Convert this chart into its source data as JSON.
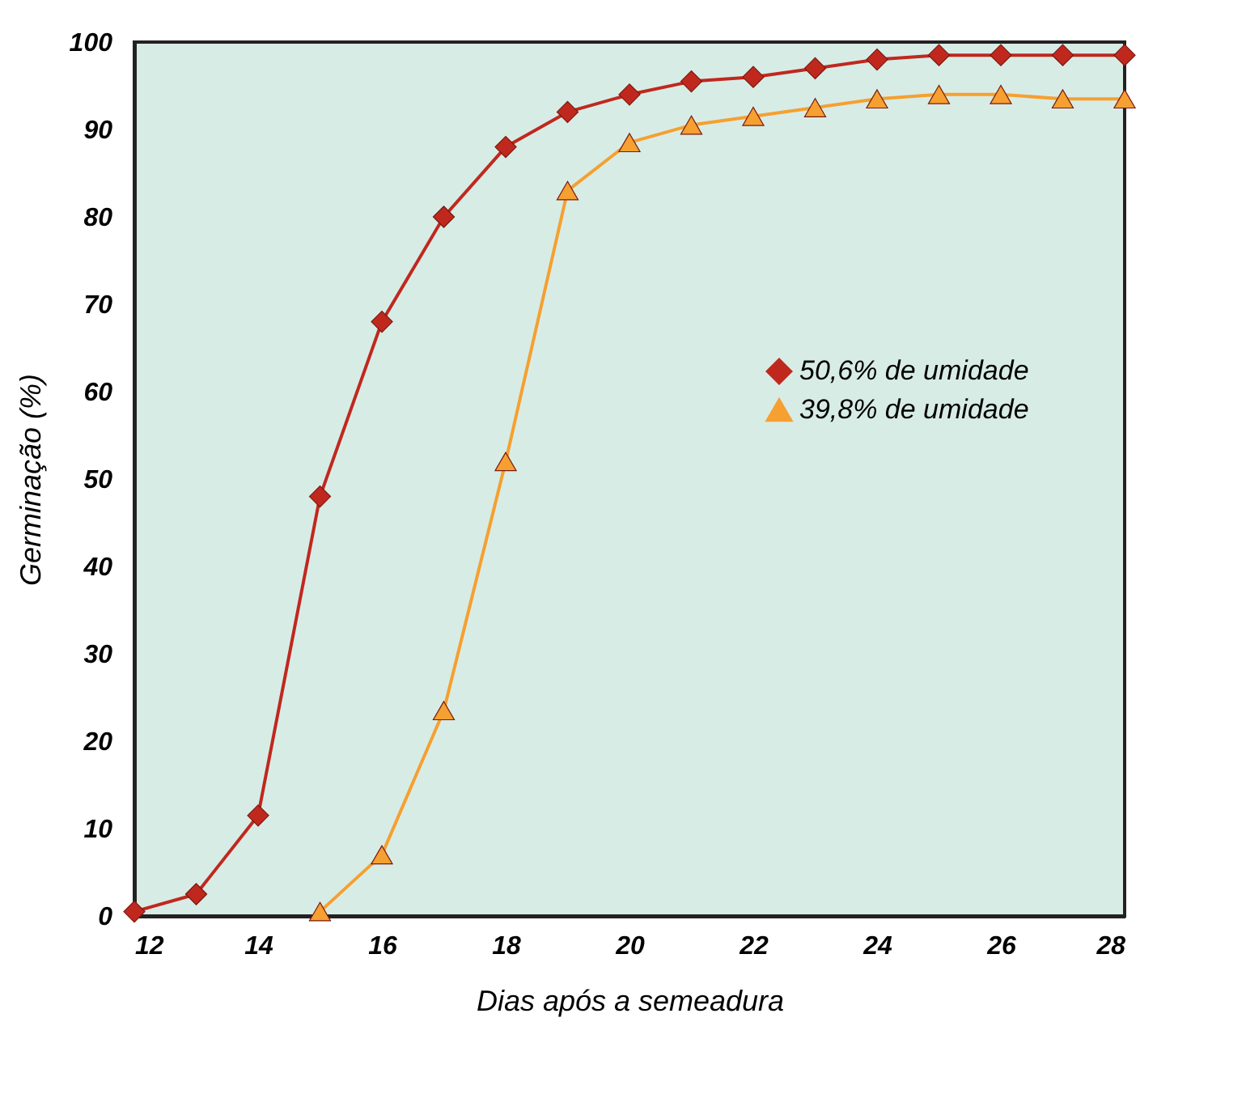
{
  "chart_data": {
    "type": "line",
    "xlabel": "Dias após a semeadura",
    "ylabel": "Germinação (%)",
    "xlim": [
      12,
      28
    ],
    "xticks": [
      12,
      14,
      16,
      18,
      20,
      22,
      24,
      26,
      28
    ],
    "ylim": [
      0,
      100
    ],
    "yticks": [
      0,
      10,
      20,
      30,
      40,
      50,
      60,
      70,
      80,
      90,
      100
    ],
    "grid": false,
    "legend": "right",
    "line_style": "solid",
    "series": [
      {
        "name": "50,6% de umidade",
        "color": "#c0281e",
        "marker": "diamond",
        "x": [
          12,
          13,
          14,
          15,
          16,
          17,
          18,
          19,
          20,
          21,
          22,
          23,
          24,
          25,
          26,
          27,
          28
        ],
        "values": [
          0.5,
          2.5,
          11.5,
          48,
          68,
          80,
          88,
          92,
          94,
          95.5,
          96,
          97,
          98,
          98.5,
          98.5,
          98.5,
          98.5
        ]
      },
      {
        "name": "39,8% de umidade",
        "color": "#f5a030",
        "marker": "triangle",
        "x": [
          15,
          16,
          17,
          18,
          19,
          20,
          21,
          22,
          23,
          24,
          25,
          26,
          27,
          28
        ],
        "values": [
          0.5,
          7,
          23.5,
          52,
          83,
          88.5,
          90.5,
          91.5,
          92.5,
          93.5,
          94,
          94,
          93.5,
          93.5
        ]
      }
    ]
  }
}
